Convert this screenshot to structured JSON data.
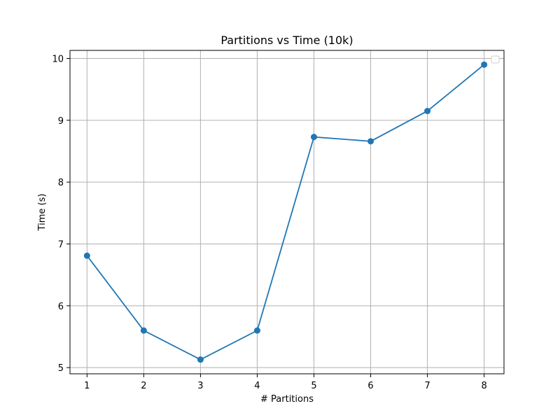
{
  "chart_data": {
    "type": "line",
    "title": "Partitions vs Time (10k)",
    "xlabel": "# Partitions",
    "ylabel": "Time (s)",
    "x": [
      1,
      2,
      3,
      4,
      5,
      6,
      7,
      8
    ],
    "xticks": [
      "1",
      "2",
      "3",
      "4",
      "5",
      "6",
      "7",
      "8"
    ],
    "yticks": [
      "5",
      "6",
      "7",
      "8",
      "9",
      "10"
    ],
    "xlim": [
      0.7,
      8.35
    ],
    "ylim": [
      4.9,
      10.13
    ],
    "grid": true,
    "legend": "top-right",
    "series": [
      {
        "values": [
          6.81,
          5.6,
          5.13,
          5.6,
          8.73,
          8.66,
          9.15,
          9.9
        ],
        "color": "#1f77b4",
        "marker": "circle"
      }
    ]
  }
}
